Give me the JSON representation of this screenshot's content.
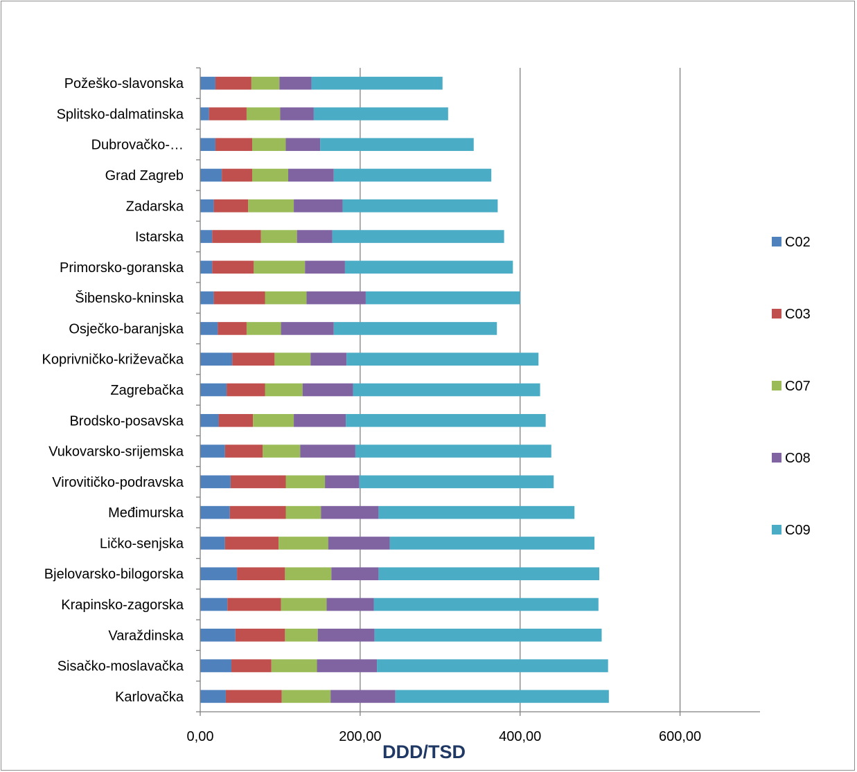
{
  "chart_data": {
    "type": "bar",
    "orientation": "horizontal",
    "stacked": true,
    "title": "",
    "xlabel": "DDD/TSD",
    "ylabel": "",
    "xlim": [
      0,
      700
    ],
    "x_ticks": [
      0,
      200,
      400,
      600
    ],
    "x_tick_labels": [
      "0,00",
      "200,00",
      "400,00",
      "600,00"
    ],
    "grid": "vertical",
    "legend_position": "right",
    "categories": [
      "Požeško-slavonska",
      "Splitsko-dalmatinska",
      "Dubrovačko-…",
      "Grad Zagreb",
      "Zadarska",
      "Istarska",
      "Primorsko-goranska",
      "Šibensko-kninska",
      "Osječko-baranjska",
      "Koprivničko-križevačka",
      "Zagrebačka",
      "Brodsko-posavska",
      "Vukovarsko-srijemska",
      "Virovitičko-podravska",
      "Međimurska",
      "Ličko-senjska",
      "Bjelovarsko-bilogorska",
      "Krapinsko-zagorska",
      "Varaždinska",
      "Sisačko-moslavačka",
      "Karlovačka"
    ],
    "series": [
      {
        "name": "C02",
        "color": "#4f81bd",
        "values": [
          19,
          11,
          19,
          27,
          17,
          15,
          15,
          17,
          22,
          40,
          33,
          23,
          31,
          38,
          37,
          31,
          46,
          34,
          44,
          39,
          32
        ]
      },
      {
        "name": "C03",
        "color": "#c0504d",
        "values": [
          45,
          47,
          46,
          38,
          43,
          61,
          52,
          64,
          36,
          53,
          48,
          43,
          47,
          69,
          70,
          67,
          60,
          67,
          62,
          50,
          70
        ]
      },
      {
        "name": "C07",
        "color": "#9bbb59",
        "values": [
          35,
          42,
          42,
          45,
          57,
          45,
          64,
          52,
          43,
          45,
          47,
          51,
          47,
          49,
          44,
          62,
          58,
          57,
          41,
          57,
          61
        ]
      },
      {
        "name": "C08",
        "color": "#8064a2",
        "values": [
          40,
          42,
          43,
          57,
          61,
          44,
          50,
          74,
          66,
          45,
          63,
          65,
          69,
          43,
          72,
          77,
          59,
          59,
          71,
          75,
          81
        ]
      },
      {
        "name": "C09",
        "color": "#4bacc6",
        "values": [
          164,
          168,
          192,
          197,
          194,
          215,
          210,
          193,
          204,
          240,
          234,
          250,
          245,
          243,
          245,
          256,
          276,
          281,
          284,
          289,
          267
        ]
      }
    ]
  }
}
